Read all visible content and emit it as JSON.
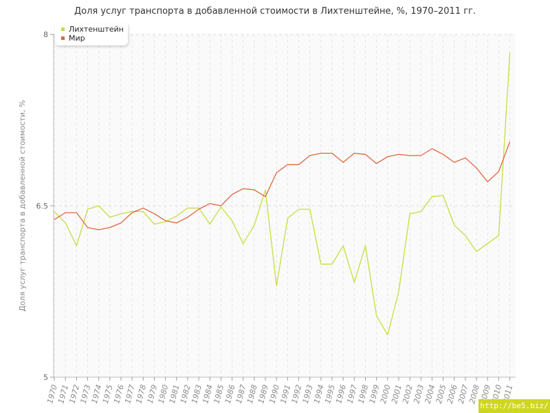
{
  "chart_data": {
    "type": "line",
    "title": "Доля услуг транспорта в добавленной стоимости в Лихтенштейне, %, 1970–2011 гг.",
    "xlabel": "",
    "ylabel": "Доля услуг транспорта в добавленной стоимости, %",
    "ylim": [
      5,
      8
    ],
    "y_ticks": [
      "5",
      "6.5",
      "8"
    ],
    "grid": true,
    "legend_position": "top-left",
    "x": [
      "1970",
      "1971",
      "1972",
      "1973",
      "1974",
      "1975",
      "1976",
      "1977",
      "1978",
      "1979",
      "1980",
      "1981",
      "1982",
      "1983",
      "1984",
      "1985",
      "1986",
      "1987",
      "1988",
      "1989",
      "1990",
      "1991",
      "1992",
      "1993",
      "1994",
      "1995",
      "1996",
      "1997",
      "1998",
      "1999",
      "2000",
      "2001",
      "2002",
      "2003",
      "2004",
      "2005",
      "2006",
      "2007",
      "2008",
      "2009",
      "2010",
      "2011"
    ],
    "series": [
      {
        "name": "Лихтенштейн",
        "color": "#c8dc3c",
        "values": [
          6.45,
          6.35,
          6.15,
          6.47,
          6.5,
          6.4,
          6.43,
          6.45,
          6.45,
          6.34,
          6.36,
          6.41,
          6.48,
          6.48,
          6.34,
          6.49,
          6.37,
          6.17,
          6.33,
          6.64,
          5.8,
          6.39,
          6.47,
          6.47,
          5.99,
          5.99,
          6.15,
          5.83,
          6.15,
          5.54,
          5.37,
          5.75,
          6.43,
          6.45,
          6.58,
          6.59,
          6.33,
          6.24,
          6.1,
          6.17,
          6.24,
          7.84
        ]
      },
      {
        "name": "Мир",
        "color": "#e0643c",
        "values": [
          6.38,
          6.44,
          6.44,
          6.31,
          6.29,
          6.31,
          6.35,
          6.44,
          6.48,
          6.43,
          6.37,
          6.35,
          6.4,
          6.47,
          6.52,
          6.5,
          6.6,
          6.65,
          6.64,
          6.58,
          6.79,
          6.86,
          6.86,
          6.94,
          6.96,
          6.96,
          6.88,
          6.96,
          6.95,
          6.87,
          6.93,
          6.95,
          6.94,
          6.94,
          7.0,
          6.95,
          6.88,
          6.92,
          6.83,
          6.71,
          6.8,
          7.06
        ]
      }
    ]
  },
  "watermark": "http://be5.biz/"
}
